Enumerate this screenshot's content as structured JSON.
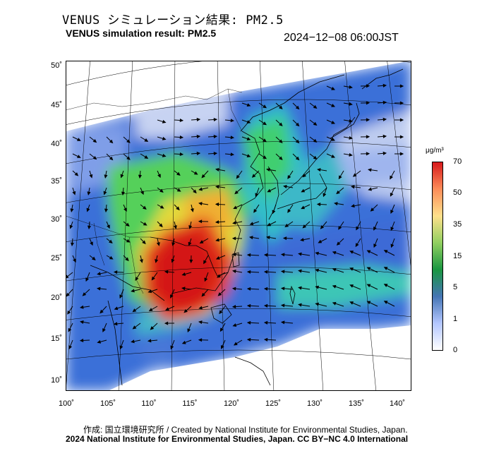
{
  "title_jp": "VENUS シミュレーション結果: PM2.5",
  "title_en": "VENUS simulation result: PM2.5",
  "timestamp": "2024−12−08 06:00JST",
  "map": {
    "lat_labels": [
      "50˚",
      "45˚",
      "40˚",
      "35˚",
      "30˚",
      "25˚",
      "20˚",
      "15˚",
      "10˚"
    ],
    "lon_labels": [
      "100˚",
      "105˚",
      "110˚",
      "115˚",
      "120˚",
      "125˚",
      "130˚",
      "135˚",
      "140˚"
    ],
    "variable": "PM2.5",
    "high_region": "South China coast (red/orange)"
  },
  "colorbar": {
    "unit": "μg/m³",
    "ticks": [
      "70",
      "50",
      "35",
      "15",
      "5",
      "1",
      "0"
    ],
    "colors": [
      "#d7191c",
      "#fc8d59",
      "#fee08b",
      "#91cf60",
      "#1a9641",
      "#4575b4",
      "#b3c6ff",
      "#ffffff"
    ]
  },
  "credit_jp": "作成: 国立環境研究所 / Created by National Institute for Environmental Studies, Japan.",
  "credit_en": "2024 National Institute for Environmental Studies, Japan. CC BY−NC 4.0 International"
}
